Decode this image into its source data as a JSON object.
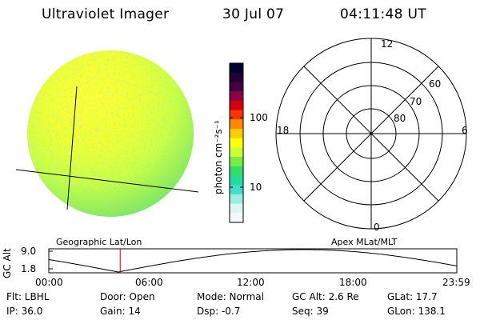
{
  "header": {
    "title": "Ultraviolet Imager",
    "date": "30 Jul 07",
    "time": "04:11:48 UT"
  },
  "colorbar": {
    "label": "photon cm⁻²s⁻¹",
    "ticks": [
      "100",
      "10"
    ],
    "colors": [
      "#000033",
      "#220033",
      "#440044",
      "#8a0040",
      "#d00010",
      "#ff3300",
      "#ff8800",
      "#ffcc00",
      "#ffff00",
      "#ccff33",
      "#77ee44",
      "#33dd66",
      "#22dd99",
      "#44ddcc",
      "#99eedd",
      "#ddf5f0",
      "#f6f6f6"
    ]
  },
  "polar_plot": {
    "mlt_labels": {
      "top": "12",
      "left": "18",
      "right": "6",
      "bottom": "0"
    },
    "lat_labels": [
      "60",
      "70",
      "80"
    ]
  },
  "image_labels": {
    "left": "Geographic Lat/Lon",
    "right": "Apex MLat/MLT"
  },
  "altitude_strip": {
    "axis_label": "GC Alt",
    "y_ticks": [
      "9.0",
      "1.8"
    ],
    "x_ticks": [
      "00:00",
      "06:00",
      "12:00",
      "18:00",
      "23:59"
    ],
    "current_time_fraction": 0.1749
  },
  "info": {
    "row1": {
      "flt": "Flt: LBHL",
      "door": "Door: Open",
      "mode": "Mode: Normal",
      "gcalt": "GC Alt: 2.6 Re",
      "glat": "GLat: 17.7"
    },
    "row2": {
      "ip": "IP: 36.0",
      "gain": "Gain: 14",
      "dsp": "Dsp:    -0.7",
      "seq": "Seq: 39",
      "glon": "GLon: 138.1"
    }
  }
}
